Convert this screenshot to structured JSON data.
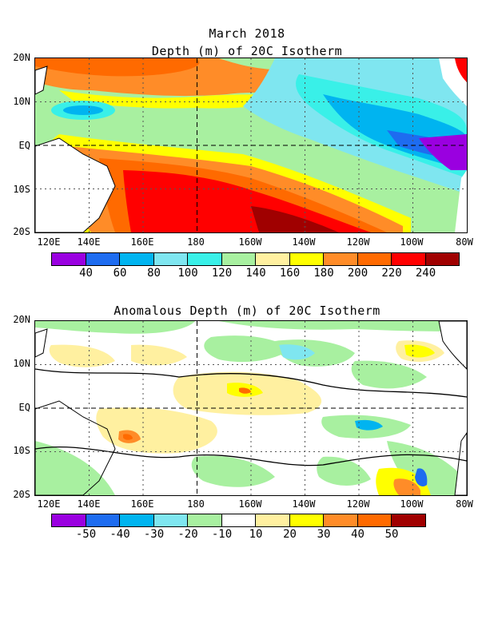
{
  "top": {
    "title_line1": "March 2018",
    "title_line2": "Depth (m) of 20C Isotherm",
    "colorbar_labels": [
      "40",
      "60",
      "80",
      "100",
      "120",
      "140",
      "160",
      "180",
      "200",
      "220",
      "240"
    ],
    "colors": [
      "#9a00e0",
      "#1e6cf0",
      "#00b4f0",
      "#7fe6f0",
      "#39f0e8",
      "#a8f0a0",
      "#fff0a0",
      "#ffff00",
      "#ff8c28",
      "#ff6a00",
      "#ff0000",
      "#a00000"
    ]
  },
  "bottom": {
    "title": "Anomalous Depth (m) of 20C Isotherm",
    "colorbar_labels": [
      "-50",
      "-40",
      "-30",
      "-20",
      "-10",
      "10",
      "20",
      "30",
      "40",
      "50"
    ],
    "colors": [
      "#9a00e0",
      "#1e6cf0",
      "#00b4f0",
      "#7fe6f0",
      "#a8f0a0",
      "#ffffff",
      "#fff0a0",
      "#ffff00",
      "#ff8c28",
      "#ff6a00",
      "#a00000"
    ]
  },
  "axes": {
    "y_labels": [
      "20N",
      "10N",
      "EQ",
      "10S",
      "20S"
    ],
    "x_labels": [
      "120E",
      "140E",
      "160E",
      "180",
      "160W",
      "140W",
      "120W",
      "100W",
      "80W"
    ]
  }
}
